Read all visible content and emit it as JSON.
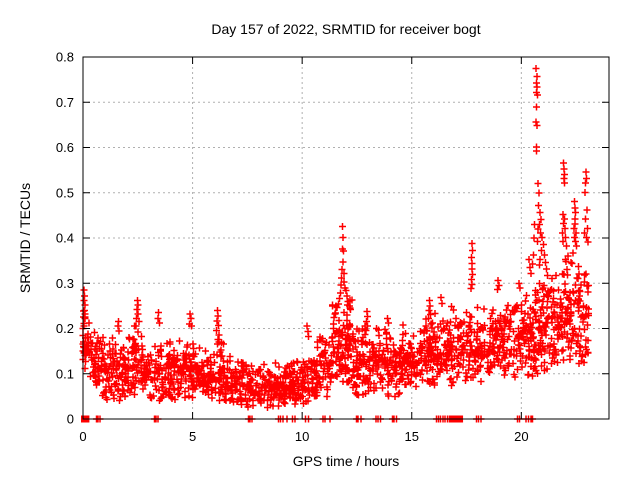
{
  "chart_data": {
    "type": "scatter",
    "title": "Day 157 of 2022, SRMTID for receiver bogt",
    "xlabel": "GPS time / hours",
    "ylabel": "SRMTID / TECUs",
    "xlim": [
      0,
      24
    ],
    "ylim": [
      0,
      0.8
    ],
    "xticks": [
      0,
      5,
      10,
      15,
      20
    ],
    "yticks": [
      0,
      0.1,
      0.2,
      0.3,
      0.4,
      0.5,
      0.6,
      0.7,
      0.8
    ],
    "grid": true,
    "legend_position": "none",
    "marker": {
      "shape": "plus",
      "color": "#ff0000",
      "half_size": 3.5,
      "stroke_width": 1.5
    },
    "colors": {
      "frame": "#000000",
      "grid": "#b0b0b0",
      "background": "#ffffff",
      "series": "#ff0000"
    },
    "series_name": "SRMTID",
    "seed": 1157,
    "bands": [
      [
        0.0,
        0.35,
        30,
        0.185,
        0.17,
        0.055,
        0.1,
        0.295
      ],
      [
        0.35,
        1.0,
        55,
        0.125,
        0.115,
        0.05,
        0.045,
        0.21
      ],
      [
        1.0,
        2.2,
        100,
        0.105,
        0.105,
        0.05,
        0.04,
        0.2
      ],
      [
        2.2,
        2.7,
        45,
        0.13,
        0.125,
        0.055,
        0.05,
        0.23
      ],
      [
        2.7,
        4.2,
        120,
        0.105,
        0.1,
        0.05,
        0.04,
        0.21
      ],
      [
        4.2,
        5.2,
        80,
        0.105,
        0.1,
        0.05,
        0.045,
        0.2
      ],
      [
        5.2,
        6.0,
        65,
        0.09,
        0.09,
        0.045,
        0.035,
        0.17
      ],
      [
        6.0,
        6.45,
        40,
        0.11,
        0.1,
        0.05,
        0.04,
        0.2
      ],
      [
        6.45,
        7.5,
        85,
        0.085,
        0.08,
        0.04,
        0.03,
        0.15
      ],
      [
        7.5,
        9.5,
        160,
        0.073,
        0.07,
        0.035,
        0.025,
        0.13
      ],
      [
        9.5,
        10.4,
        75,
        0.078,
        0.085,
        0.04,
        0.03,
        0.15
      ],
      [
        10.4,
        11.35,
        80,
        0.1,
        0.115,
        0.05,
        0.045,
        0.19
      ],
      [
        11.35,
        12.4,
        110,
        0.165,
        0.16,
        0.07,
        0.07,
        0.3
      ],
      [
        12.4,
        13.35,
        85,
        0.12,
        0.12,
        0.055,
        0.05,
        0.23
      ],
      [
        13.35,
        14.5,
        95,
        0.12,
        0.125,
        0.055,
        0.05,
        0.22
      ],
      [
        14.5,
        15.5,
        85,
        0.13,
        0.135,
        0.055,
        0.06,
        0.23
      ],
      [
        15.5,
        16.5,
        85,
        0.145,
        0.15,
        0.06,
        0.07,
        0.26
      ],
      [
        16.5,
        17.55,
        90,
        0.155,
        0.16,
        0.06,
        0.07,
        0.28
      ],
      [
        17.55,
        18.3,
        65,
        0.165,
        0.165,
        0.06,
        0.08,
        0.29
      ],
      [
        18.3,
        19.5,
        100,
        0.17,
        0.17,
        0.06,
        0.09,
        0.3
      ],
      [
        19.5,
        20.6,
        95,
        0.175,
        0.185,
        0.065,
        0.09,
        0.32
      ],
      [
        20.6,
        21.25,
        70,
        0.21,
        0.22,
        0.09,
        0.1,
        0.45
      ],
      [
        21.25,
        21.85,
        55,
        0.2,
        0.21,
        0.08,
        0.1,
        0.38
      ],
      [
        21.85,
        22.6,
        70,
        0.24,
        0.25,
        0.09,
        0.12,
        0.45
      ],
      [
        22.6,
        23.1,
        50,
        0.22,
        0.21,
        0.09,
        0.11,
        0.42
      ]
    ],
    "spikes": [
      [
        0.05,
        0.285
      ],
      [
        0.07,
        0.272
      ],
      [
        0.04,
        0.262
      ],
      [
        0.09,
        0.252
      ],
      [
        0.06,
        0.24
      ],
      [
        0.03,
        0.225
      ],
      [
        0.08,
        0.222
      ],
      [
        0,
        0.2
      ],
      [
        0,
        0.185
      ],
      [
        0,
        0.15
      ],
      [
        0,
        0.132
      ],
      [
        0.02,
        0.17
      ],
      [
        0.02,
        0.16
      ],
      [
        1.62,
        0.215
      ],
      [
        1.6,
        0.205
      ],
      [
        1.65,
        0.195
      ],
      [
        2.48,
        0.262
      ],
      [
        2.5,
        0.252
      ],
      [
        2.46,
        0.242
      ],
      [
        2.52,
        0.232
      ],
      [
        2.44,
        0.222
      ],
      [
        2.55,
        0.215
      ],
      [
        2.42,
        0.205
      ],
      [
        3.45,
        0.235
      ],
      [
        3.42,
        0.222
      ],
      [
        3.48,
        0.212
      ],
      [
        4.88,
        0.232
      ],
      [
        4.92,
        0.222
      ],
      [
        4.86,
        0.21
      ],
      [
        4.95,
        0.205
      ],
      [
        6.14,
        0.24
      ],
      [
        6.16,
        0.228
      ],
      [
        6.12,
        0.217
      ],
      [
        6.18,
        0.207
      ],
      [
        6.1,
        0.196
      ],
      [
        6.2,
        0.186
      ],
      [
        6.15,
        0.176
      ],
      [
        6.13,
        0.166
      ],
      [
        10.22,
        0.205
      ],
      [
        10.26,
        0.193
      ],
      [
        10.3,
        0.182
      ],
      [
        11.85,
        0.425
      ],
      [
        11.87,
        0.401
      ],
      [
        11.84,
        0.376
      ],
      [
        11.88,
        0.371
      ],
      [
        11.86,
        0.347
      ],
      [
        11.82,
        0.33
      ],
      [
        11.9,
        0.322
      ],
      [
        11.8,
        0.312
      ],
      [
        11.92,
        0.303
      ],
      [
        11.78,
        0.296
      ],
      [
        11.95,
        0.29
      ],
      [
        12.0,
        0.284
      ],
      [
        11.74,
        0.279
      ],
      [
        12.05,
        0.272
      ],
      [
        11.7,
        0.266
      ],
      [
        12.1,
        0.26
      ],
      [
        11.65,
        0.254
      ],
      [
        12.15,
        0.25
      ],
      [
        11.6,
        0.246
      ],
      [
        12.2,
        0.242
      ],
      [
        12.95,
        0.238
      ],
      [
        12.97,
        0.226
      ],
      [
        12.93,
        0.215
      ],
      [
        12.99,
        0.205
      ],
      [
        12.91,
        0.196
      ],
      [
        13.9,
        0.222
      ],
      [
        13.93,
        0.212
      ],
      [
        15.8,
        0.262
      ],
      [
        15.83,
        0.25
      ],
      [
        15.78,
        0.24
      ],
      [
        15.85,
        0.231
      ],
      [
        15.76,
        0.222
      ],
      [
        16.33,
        0.268
      ],
      [
        16.37,
        0.255
      ],
      [
        17.75,
        0.388
      ],
      [
        17.77,
        0.372
      ],
      [
        17.73,
        0.357
      ],
      [
        17.76,
        0.344
      ],
      [
        17.74,
        0.331
      ],
      [
        17.78,
        0.319
      ],
      [
        17.72,
        0.308
      ],
      [
        17.75,
        0.297
      ],
      [
        17.7,
        0.288
      ],
      [
        18.94,
        0.306
      ],
      [
        18.97,
        0.295
      ],
      [
        18.92,
        0.286
      ],
      [
        19.9,
        0.3
      ],
      [
        19.94,
        0.29
      ],
      [
        20.35,
        0.352
      ],
      [
        20.4,
        0.335
      ],
      [
        20.45,
        0.322
      ],
      [
        20.5,
        0.342
      ],
      [
        20.55,
        0.362
      ],
      [
        20.58,
        0.4
      ],
      [
        20.6,
        0.43
      ],
      [
        20.68,
        0.775
      ],
      [
        20.71,
        0.757
      ],
      [
        20.69,
        0.742
      ],
      [
        20.72,
        0.734
      ],
      [
        20.7,
        0.722
      ],
      [
        20.73,
        0.716
      ],
      [
        20.7,
        0.69
      ],
      [
        20.68,
        0.656
      ],
      [
        20.72,
        0.649
      ],
      [
        20.7,
        0.601
      ],
      [
        20.69,
        0.592
      ],
      [
        20.76,
        0.52
      ],
      [
        20.8,
        0.5
      ],
      [
        20.78,
        0.472
      ],
      [
        20.85,
        0.456
      ],
      [
        20.9,
        0.441
      ],
      [
        20.82,
        0.43
      ],
      [
        20.77,
        0.42
      ],
      [
        20.88,
        0.411
      ],
      [
        20.95,
        0.401
      ],
      [
        20.74,
        0.392
      ],
      [
        21.0,
        0.386
      ],
      [
        20.92,
        0.372
      ],
      [
        21.05,
        0.362
      ],
      [
        20.86,
        0.352
      ],
      [
        21.1,
        0.346
      ],
      [
        20.83,
        0.34
      ],
      [
        21.15,
        0.332
      ],
      [
        21.93,
        0.566
      ],
      [
        21.95,
        0.552
      ],
      [
        21.97,
        0.54
      ],
      [
        21.94,
        0.531
      ],
      [
        21.96,
        0.521
      ],
      [
        21.9,
        0.452
      ],
      [
        21.98,
        0.442
      ],
      [
        21.92,
        0.432
      ],
      [
        22.0,
        0.421
      ],
      [
        21.88,
        0.411
      ],
      [
        22.02,
        0.401
      ],
      [
        21.91,
        0.392
      ],
      [
        22.05,
        0.382
      ],
      [
        22.43,
        0.481
      ],
      [
        22.45,
        0.466
      ],
      [
        22.47,
        0.456
      ],
      [
        22.44,
        0.442
      ],
      [
        22.46,
        0.431
      ],
      [
        22.4,
        0.421
      ],
      [
        22.5,
        0.411
      ],
      [
        22.42,
        0.401
      ],
      [
        22.48,
        0.392
      ],
      [
        22.52,
        0.382
      ],
      [
        22.95,
        0.546
      ],
      [
        22.97,
        0.531
      ],
      [
        22.93,
        0.521
      ],
      [
        22.9,
        0.501
      ],
      [
        23.0,
        0.462
      ],
      [
        22.92,
        0.442
      ],
      [
        23.02,
        0.421
      ],
      [
        22.88,
        0.411
      ],
      [
        22.97,
        0.401
      ],
      [
        23.05,
        0.391
      ]
    ],
    "zero_marks": [
      0.62,
      0.68,
      0.78,
      3.27,
      3.33,
      3.42,
      7.55,
      7.62,
      7.72,
      8.92,
      9.0,
      9.12,
      9.3,
      9.55,
      9.68,
      10.15,
      10.28,
      10.95,
      11.05,
      11.28,
      12.48,
      12.55,
      12.68,
      13.38,
      13.45,
      13.58,
      14.12,
      14.2,
      14.3,
      16.12,
      16.22,
      16.32,
      16.42,
      16.52,
      16.62,
      17.95,
      18.05,
      18.15,
      19.82,
      19.92,
      20.22,
      20.32,
      20.45,
      20.52
    ],
    "zero_blobs": [
      [
        0.0,
        0.2
      ],
      [
        16.78,
        17.25
      ]
    ]
  }
}
